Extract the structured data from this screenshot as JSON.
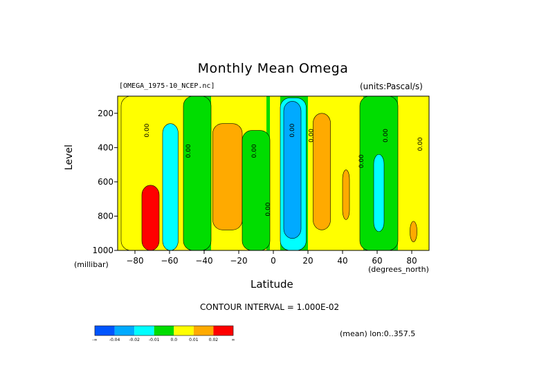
{
  "chart_data": {
    "type": "heatmap",
    "title": "Monthly Mean Omega",
    "file_label": "[OMEGA_1975-10_NCEP.nc]",
    "units_label": "(units:Pascal/s)",
    "xlabel": "Latitude",
    "x_unit": "(degrees_north)",
    "ylabel": "Level",
    "y_unit": "(millibar)",
    "xlim": [
      -90,
      90
    ],
    "ylim": [
      1000,
      100
    ],
    "x_ticks": [
      -80,
      -60,
      -40,
      -20,
      0,
      20,
      40,
      60,
      80
    ],
    "y_ticks": [
      200,
      400,
      600,
      800,
      1000
    ],
    "contour_interval_text": "CONTOUR INTERVAL = 1.000E-02",
    "footer_text": "(mean) lon:0..357.5",
    "contour_labels": [
      "0.00"
    ],
    "colorbar": {
      "colors": [
        "#0055ff",
        "#00aaff",
        "#00ffff",
        "#00dd00",
        "#ffff00",
        "#ffaa00",
        "#ff0000"
      ],
      "labels": [
        "-∞",
        "-0.04",
        "-0.02",
        "-0.01",
        "0.0",
        "0.01",
        "0.02",
        "∞"
      ]
    },
    "regions": [
      {
        "name": "yellow-band-lat-80-55",
        "level": "0.00..0.01",
        "x": [
          -88,
          -44
        ],
        "y": [
          1000,
          100
        ]
      },
      {
        "name": "green-band-lat-52-36",
        "level": "-0.01..0.00",
        "x": [
          -52,
          -36
        ],
        "y": [
          1000,
          100
        ]
      },
      {
        "name": "orange-cell-lat-28",
        "level": "0.01..0.02",
        "x": [
          -35,
          -18
        ],
        "y": [
          880,
          260
        ]
      },
      {
        "name": "green-band-lat-8",
        "level": "-0.01..0.00",
        "x": [
          -18,
          -2
        ],
        "y": [
          1000,
          300
        ]
      },
      {
        "name": "cyan-cell-lat-10",
        "level": "-0.02..-0.01",
        "x": [
          4,
          19
        ],
        "y": [
          1000,
          110
        ]
      },
      {
        "name": "blue-core-lat-10",
        "level": "-0.04..-0.02",
        "x": [
          6,
          16
        ],
        "y": [
          930,
          130
        ]
      },
      {
        "name": "orange-cell-lat-28b",
        "level": "0.01..0.02",
        "x": [
          23,
          33
        ],
        "y": [
          880,
          200
        ]
      },
      {
        "name": "orange-cell-lat-43",
        "level": "0.01..0.02",
        "x": [
          40,
          44
        ],
        "y": [
          820,
          530
        ]
      },
      {
        "name": "green-band-lat-62",
        "level": "-0.01..0.00",
        "x": [
          50,
          72
        ],
        "y": [
          1000,
          100
        ]
      },
      {
        "name": "cyan-cell-lat-62",
        "level": "-0.02..-0.01",
        "x": [
          58,
          64
        ],
        "y": [
          890,
          440
        ]
      },
      {
        "name": "orange-cell-lat-80",
        "level": "0.01..0.02",
        "x": [
          79,
          83
        ],
        "y": [
          950,
          830
        ]
      },
      {
        "name": "red-cell-lat-72",
        "level": ">0.02",
        "x": [
          -76,
          -66
        ],
        "y": [
          1000,
          620
        ]
      },
      {
        "name": "cyan-cell-lat-58s",
        "level": "-0.02..-0.01",
        "x": [
          -64,
          -55
        ],
        "y": [
          1000,
          260
        ]
      }
    ]
  }
}
